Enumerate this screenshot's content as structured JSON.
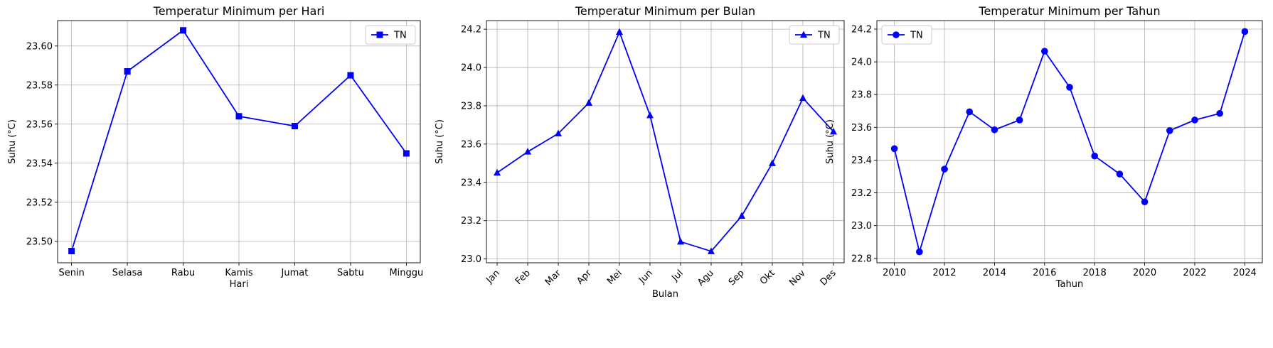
{
  "chart_data": [
    {
      "type": "line",
      "title": "Temperatur Minimum per Hari",
      "xlabel": "Hari",
      "ylabel": "Suhu (°C)",
      "categories": [
        "Senin",
        "Selasa",
        "Rabu",
        "Kamis",
        "Jumat",
        "Sabtu",
        "Minggu"
      ],
      "series": [
        {
          "name": "TN",
          "marker": "square",
          "color": "#0000ff",
          "values": [
            23.495,
            23.587,
            23.608,
            23.564,
            23.559,
            23.585,
            23.545
          ]
        }
      ],
      "ylim": [
        23.489,
        23.613
      ],
      "yticks": [
        23.5,
        23.52,
        23.54,
        23.56,
        23.58,
        23.6
      ],
      "ytick_labels": [
        "23.50",
        "23.52",
        "23.54",
        "23.56",
        "23.58",
        "23.60"
      ],
      "xtick_rotation": 0,
      "grid": true,
      "legend": "top-right"
    },
    {
      "type": "line",
      "title": "Temperatur Minimum per Bulan",
      "xlabel": "Bulan",
      "ylabel": "Suhu (°C)",
      "categories": [
        "Jan",
        "Feb",
        "Mar",
        "Apr",
        "Mei",
        "Jun",
        "Jul",
        "Agu",
        "Sep",
        "Okt",
        "Nov",
        "Des"
      ],
      "series": [
        {
          "name": "TN",
          "marker": "triangle",
          "color": "#0000ff",
          "values": [
            23.45,
            23.56,
            23.655,
            23.815,
            24.185,
            23.75,
            23.09,
            23.04,
            23.225,
            23.5,
            23.84,
            23.665
          ]
        }
      ],
      "ylim": [
        22.98,
        24.245
      ],
      "yticks": [
        23.0,
        23.2,
        23.4,
        23.6,
        23.8,
        24.0,
        24.2
      ],
      "ytick_labels": [
        "23.0",
        "23.2",
        "23.4",
        "23.6",
        "23.8",
        "24.0",
        "24.2"
      ],
      "xtick_rotation": -45,
      "grid": true,
      "legend": "top-right"
    },
    {
      "type": "line",
      "title": "Temperatur Minimum per Tahun",
      "xlabel": "Tahun",
      "ylabel": "Suhu (°C)",
      "x": [
        2010,
        2011,
        2012,
        2013,
        2014,
        2015,
        2016,
        2017,
        2018,
        2019,
        2020,
        2021,
        2022,
        2023,
        2024
      ],
      "series": [
        {
          "name": "TN",
          "marker": "circle",
          "color": "#0000ff",
          "values": [
            23.47,
            22.84,
            23.345,
            23.695,
            23.585,
            23.645,
            24.065,
            23.845,
            23.425,
            23.315,
            23.145,
            23.58,
            23.645,
            23.685,
            24.185
          ]
        }
      ],
      "xlim": [
        2009.3,
        2024.7
      ],
      "xticks": [
        2010,
        2012,
        2014,
        2016,
        2018,
        2020,
        2022,
        2024
      ],
      "xtick_labels": [
        "2010",
        "2012",
        "2014",
        "2016",
        "2018",
        "2020",
        "2022",
        "2024"
      ],
      "ylim": [
        22.773,
        24.252
      ],
      "yticks": [
        22.8,
        23.0,
        23.2,
        23.4,
        23.6,
        23.8,
        24.0,
        24.2
      ],
      "ytick_labels": [
        "22.8",
        "23.0",
        "23.2",
        "23.4",
        "23.6",
        "23.8",
        "24.0",
        "24.2"
      ],
      "xtick_rotation": 0,
      "grid": true,
      "legend": "top-left"
    }
  ]
}
